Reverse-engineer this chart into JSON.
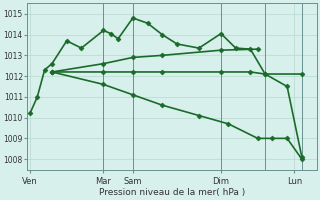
{
  "title": "",
  "xlabel": "Pression niveau de la mer( hPa )",
  "ylabel": "",
  "bg_color": "#d8f0ec",
  "grid_color": "#b8d8d0",
  "line_color": "#1a6b2a",
  "ylim": [
    1007.5,
    1015.5
  ],
  "yticks": [
    1008,
    1009,
    1010,
    1011,
    1012,
    1013,
    1014,
    1015
  ],
  "xtick_labels": [
    "Ven",
    "Mar",
    "Sam",
    "Dim",
    "Lun"
  ],
  "xtick_positions": [
    0,
    5,
    7,
    13,
    18
  ],
  "series": [
    {
      "x": [
        0,
        0.5,
        1.0,
        1.5,
        2.5,
        3.5,
        5.0,
        5.5,
        6.0,
        7.0,
        8.0,
        9.0,
        10.0,
        11.5,
        13.0,
        14.0,
        15.0,
        16.0,
        17.5,
        18.5
      ],
      "y": [
        1010.2,
        1011.0,
        1012.3,
        1012.6,
        1013.7,
        1013.35,
        1014.2,
        1014.05,
        1013.8,
        1014.8,
        1014.55,
        1014.0,
        1013.55,
        1013.35,
        1014.05,
        1013.35,
        1013.3,
        1012.1,
        1011.5,
        1008.1
      ],
      "marker": "D",
      "markersize": 2.5,
      "linewidth": 1.2,
      "linestyle": "-"
    },
    {
      "x": [
        1.5,
        5.0,
        7.0,
        9.0,
        13.0,
        15.0,
        16.0,
        18.5
      ],
      "y": [
        1012.2,
        1012.2,
        1012.2,
        1012.2,
        1012.2,
        1012.2,
        1012.1,
        1012.1
      ],
      "marker": "D",
      "markersize": 2.5,
      "linewidth": 1.2,
      "linestyle": "-"
    },
    {
      "x": [
        1.5,
        5.0,
        7.0,
        9.0,
        13.0,
        15.5
      ],
      "y": [
        1012.2,
        1012.6,
        1012.9,
        1013.0,
        1013.25,
        1013.3
      ],
      "marker": "D",
      "markersize": 2.5,
      "linewidth": 1.2,
      "linestyle": "-"
    },
    {
      "x": [
        1.5,
        5.0,
        7.0,
        9.0,
        11.5,
        13.5,
        15.5,
        16.5,
        17.5,
        18.5
      ],
      "y": [
        1012.2,
        1011.6,
        1011.1,
        1010.6,
        1010.1,
        1009.7,
        1009.0,
        1009.0,
        1009.0,
        1008.0
      ],
      "marker": "D",
      "markersize": 2.5,
      "linewidth": 1.2,
      "linestyle": "-"
    }
  ],
  "vlines_x": [
    5.0,
    7.0,
    13.0,
    16.0,
    18.5
  ],
  "vline_color": "#6a9090",
  "figsize": [
    3.2,
    2.0
  ],
  "dpi": 100
}
